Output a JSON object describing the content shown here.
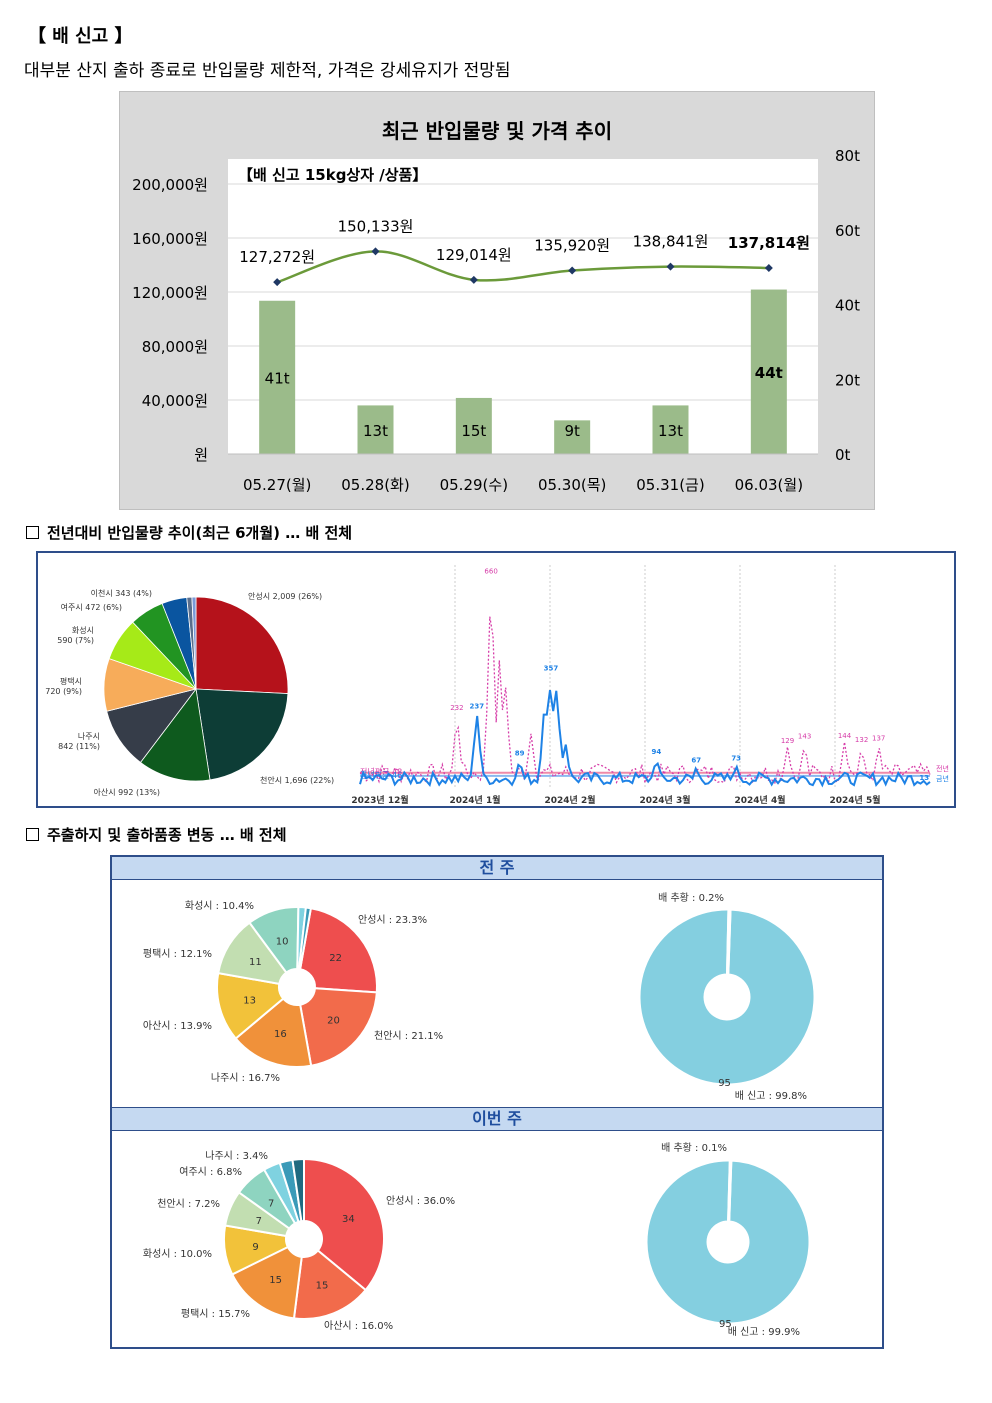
{
  "header": {
    "title": "【 배 신고 】",
    "subtitle": "대부분 산지 출하 종료로 반입물량 제한적, 가격은 강세유지가 전망됨"
  },
  "sections": {
    "yoy_title": "전년대비 반입물량 추이(최근 6개월) … 배 전체",
    "origin_title": "주출하지 및 출하품종 변동 … 배 전체",
    "prev_week": "전 주",
    "this_week": "이번 주"
  },
  "colors": {
    "bar": "#9bbb8a",
    "line": "#6b9a3a",
    "marker": "#1f3864",
    "series_blue": "#1e82e6",
    "series_pink": "#d63ca8"
  },
  "chart_data": [
    {
      "type": "bar",
      "title": "최근 반입물량 및 가격 추이",
      "subtitle": "【배 신고 15kg상자 /상품】",
      "categories": [
        "05.27(월)",
        "05.28(화)",
        "05.29(수)",
        "05.30(목)",
        "05.31(금)",
        "06.03(월)"
      ],
      "series": [
        {
          "values": [
            41,
            13,
            15,
            9,
            13,
            44
          ],
          "labels": [
            "41t",
            "13t",
            "15t",
            "9t",
            "13t",
            "44t"
          ],
          "axis": "right"
        },
        {
          "type": "line",
          "values": [
            127272,
            150133,
            129014,
            135920,
            138841,
            137814
          ],
          "labels": [
            "127,272원",
            "150,133원",
            "129,014원",
            "135,920원",
            "138,841원",
            "137,814원"
          ],
          "axis": "left"
        }
      ],
      "y_left_ticks": [
        "원",
        "40,000원",
        "80,000원",
        "120,000원",
        "160,000원",
        "200,000원"
      ],
      "y_left_lim": [
        0,
        200000
      ],
      "y_right_ticks": [
        "0t",
        "20t",
        "40t",
        "60t",
        "80t"
      ],
      "y_right_lim": [
        0,
        80
      ],
      "grid": true
    },
    {
      "type": "pie",
      "slices": [
        {
          "label": "안성시 2,009 (26%)",
          "value": 2009,
          "color": "#b5121b"
        },
        {
          "label": "천안시 1,696 (22%)",
          "value": 1696,
          "color": "#0d3d36"
        },
        {
          "label": "아산시 992 (13%)",
          "value": 992,
          "color": "#0e5a1e"
        },
        {
          "label": "나주시 842 (11%)",
          "value": 842,
          "color": "#363d49"
        },
        {
          "label": "평택시 720 (9%)",
          "value": 720,
          "color": "#f7ac5a"
        },
        {
          "label": "화성시 590 (7%)",
          "value": 590,
          "color": "#a6ea18"
        },
        {
          "label": "여주시 472 (6%)",
          "value": 472,
          "color": "#229422"
        },
        {
          "label": "이천시 343 (4%)",
          "value": 343,
          "color": "#0a55a0"
        },
        {
          "value": 70,
          "color": "#5a6e8c"
        },
        {
          "value": 55,
          "color": "#7a9ad8"
        }
      ]
    },
    {
      "type": "line",
      "x_ticks": [
        "2023년 12월",
        "2024년 1월",
        "2024년 2월",
        "2024년 3월",
        "2024년 4월",
        "2024년 5월"
      ],
      "peak_labels_pink": [
        {
          "x": 0.17,
          "value": 232
        },
        {
          "x": 0.23,
          "value": 660
        },
        {
          "x": 0.75,
          "value": 129
        },
        {
          "x": 0.78,
          "value": 143
        },
        {
          "x": 0.85,
          "value": 144
        },
        {
          "x": 0.88,
          "value": 132
        },
        {
          "x": 0.91,
          "value": 137
        }
      ],
      "peak_labels_blue": [
        {
          "x": 0.205,
          "value": 237
        },
        {
          "x": 0.28,
          "value": 89
        },
        {
          "x": 0.335,
          "value": 357
        },
        {
          "x": 0.52,
          "value": 94
        },
        {
          "x": 0.59,
          "value": 67
        },
        {
          "x": 0.66,
          "value": 73
        },
        {
          "x": 0.99,
          "value": 13
        }
      ],
      "ref_labels": [
        "전년평균 48",
        "금년평균 46"
      ],
      "legend": [
        "전년",
        "금년"
      ],
      "ylim": [
        0,
        700
      ]
    },
    {
      "type": "pie",
      "panel": "전 주",
      "donut": true,
      "slices": [
        {
          "label": "안성시 : 23.3%",
          "value": 23.3,
          "inner": "22",
          "color": "#ee4e4e"
        },
        {
          "label": "천안시 : 21.1%",
          "value": 21.1,
          "inner": "20",
          "color": "#f26b4b"
        },
        {
          "label": "나주시 : 16.7%",
          "value": 16.7,
          "inner": "16",
          "color": "#f0913a"
        },
        {
          "label": "아산시 : 13.9%",
          "value": 13.9,
          "inner": "13",
          "color": "#f2c23a"
        },
        {
          "label": "평택시 : 12.1%",
          "value": 12.1,
          "inner": "11",
          "color": "#c2deb1"
        },
        {
          "label": "화성시 : 10.4%",
          "value": 10.4,
          "inner": "10",
          "color": "#8ed4c0"
        },
        {
          "value": 1.5,
          "color": "#7fd2e0"
        },
        {
          "value": 1.0,
          "color": "#3a9ab8"
        }
      ]
    },
    {
      "type": "pie",
      "panel": "전 주",
      "donut": true,
      "slices": [
        {
          "label": "배 신고 : 99.8%",
          "value": 99.8,
          "inner": "95",
          "color": "#84cfe0"
        },
        {
          "label": "배 추황 : 0.2%",
          "value": 0.2,
          "color": "#84cfe0"
        }
      ]
    },
    {
      "type": "pie",
      "panel": "이번 주",
      "donut": true,
      "slices": [
        {
          "label": "안성시 : 36.0%",
          "value": 36.0,
          "inner": "34",
          "color": "#ee4e4e"
        },
        {
          "label": "아산시 : 16.0%",
          "value": 16.0,
          "inner": "15",
          "color": "#f26b4b"
        },
        {
          "label": "평택시 : 15.7%",
          "value": 15.7,
          "inner": "15",
          "color": "#f0913a"
        },
        {
          "label": "화성시 : 10.0%",
          "value": 10.0,
          "inner": "9",
          "color": "#f2c23a"
        },
        {
          "label": "천안시 : 7.2%",
          "value": 7.2,
          "inner": "7",
          "color": "#c2deb1"
        },
        {
          "label": "여주시 : 6.8%",
          "value": 6.8,
          "inner": "7",
          "color": "#8ed4c0"
        },
        {
          "label": "나주시 : 3.4%",
          "value": 3.4,
          "color": "#7fd2e0"
        },
        {
          "value": 2.6,
          "color": "#3a9ab8"
        },
        {
          "value": 2.3,
          "color": "#1f6a80"
        }
      ]
    },
    {
      "type": "pie",
      "panel": "이번 주",
      "donut": true,
      "slices": [
        {
          "label": "배 신고 : 99.9%",
          "value": 99.9,
          "inner": "95",
          "color": "#84cfe0"
        },
        {
          "label": "배 추황 : 0.1%",
          "value": 0.1,
          "color": "#84cfe0"
        }
      ]
    }
  ]
}
